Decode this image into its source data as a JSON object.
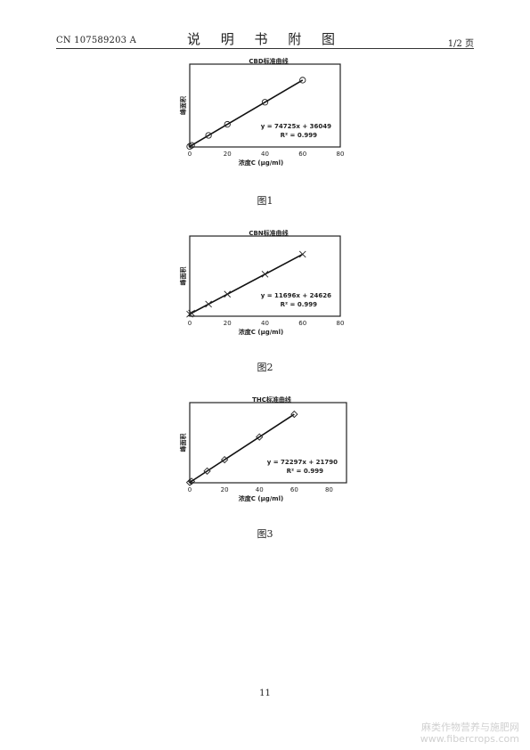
{
  "header": {
    "doc_number": "CN 107589203 A",
    "section_title": "说 明 书 附 图",
    "page_fraction": "1/2 页"
  },
  "chart_data": [
    {
      "type": "scatter",
      "title": "CBD标准曲线",
      "xlabel": "浓度C (μg/ml)",
      "ylabel": "峰面积",
      "xlim": [
        0,
        80
      ],
      "xticks": [
        "0",
        "20",
        "40",
        "60",
        "80"
      ],
      "marker": "circle",
      "x": [
        0,
        1,
        10,
        20,
        40,
        60
      ],
      "y": [
        36049,
        110774,
        783299,
        1530549,
        3025049,
        4519549
      ],
      "ylim": [
        0,
        5600000
      ],
      "equation": "y = 74725x + 36049",
      "r2": "R² = 0.999"
    },
    {
      "type": "scatter",
      "title": "CBN标准曲线",
      "xlabel": "浓度C (μg/ml)",
      "ylabel": "峰面积",
      "xlim": [
        0,
        80
      ],
      "xticks": [
        "0",
        "20",
        "40",
        "60",
        "80"
      ],
      "marker": "cross",
      "x": [
        0,
        1,
        10,
        20,
        40,
        60
      ],
      "y": [
        24626,
        36322,
        141586,
        258546,
        492466,
        726386
      ],
      "ylim": [
        0,
        940000
      ],
      "equation": "y = 11696x + 24626",
      "r2": "R² = 0.999"
    },
    {
      "type": "scatter",
      "title": "THC标准曲线",
      "xlabel": "浓度C (μg/ml)",
      "ylabel": "峰面积",
      "xlim": [
        0,
        90
      ],
      "xticks": [
        "0",
        "20",
        "40",
        "60",
        "80"
      ],
      "marker": "diamond",
      "x": [
        0,
        1,
        10,
        20,
        40,
        60
      ],
      "y": [
        21790,
        94087,
        744760,
        1467730,
        2913670,
        4359610
      ],
      "ylim": [
        0,
        5100000
      ],
      "equation": "y = 72297x + 21790",
      "r2": "R² = 0.999"
    }
  ],
  "figure_labels": [
    "图1",
    "图2",
    "图3"
  ],
  "page_number": "11",
  "watermark": {
    "line1": "麻类作物营养与施肥网",
    "line2": "www.fibercrops.com"
  }
}
